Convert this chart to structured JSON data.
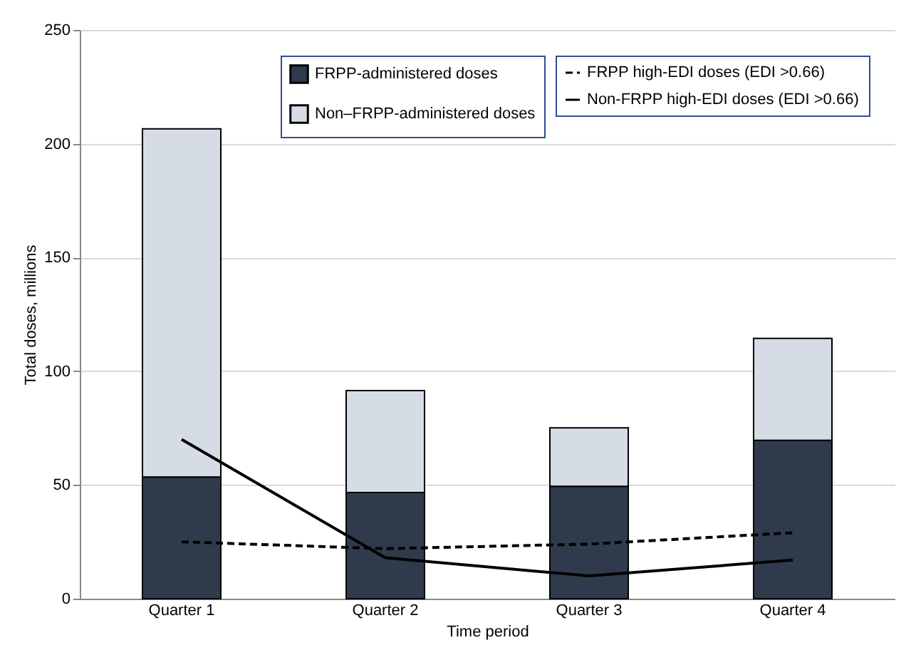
{
  "chart_data": {
    "type": "bar",
    "stacked": true,
    "xlabel": "Time period",
    "ylabel": "Total doses, millions",
    "categories": [
      "Quarter 1",
      "Quarter 2",
      "Quarter 3",
      "Quarter 4"
    ],
    "series": [
      {
        "name": "FRPP-administered doses",
        "color": "#2f3b4c",
        "values": [
          53.5,
          46.7,
          49.4,
          69.6
        ]
      },
      {
        "name": "Non–FRPP-administered doses",
        "color": "#d6dce5",
        "values": [
          153,
          44.8,
          25.7,
          44.8
        ]
      },
      {
        "name": "FRPP high-EDI doses (EDI >0.66)",
        "type": "line",
        "color": "#000000",
        "line_style": "dashed",
        "values": [
          25,
          22,
          24,
          29
        ]
      },
      {
        "name": "Non-FRPP high-EDI doses (EDI >0.66)",
        "type": "line",
        "color": "#000000",
        "line_style": "solid",
        "values": [
          70,
          18,
          10,
          17
        ]
      }
    ],
    "ylim": [
      0,
      250
    ],
    "yticks": [
      0,
      50,
      100,
      150,
      200,
      250
    ],
    "grid": "y",
    "legend": "top right"
  }
}
